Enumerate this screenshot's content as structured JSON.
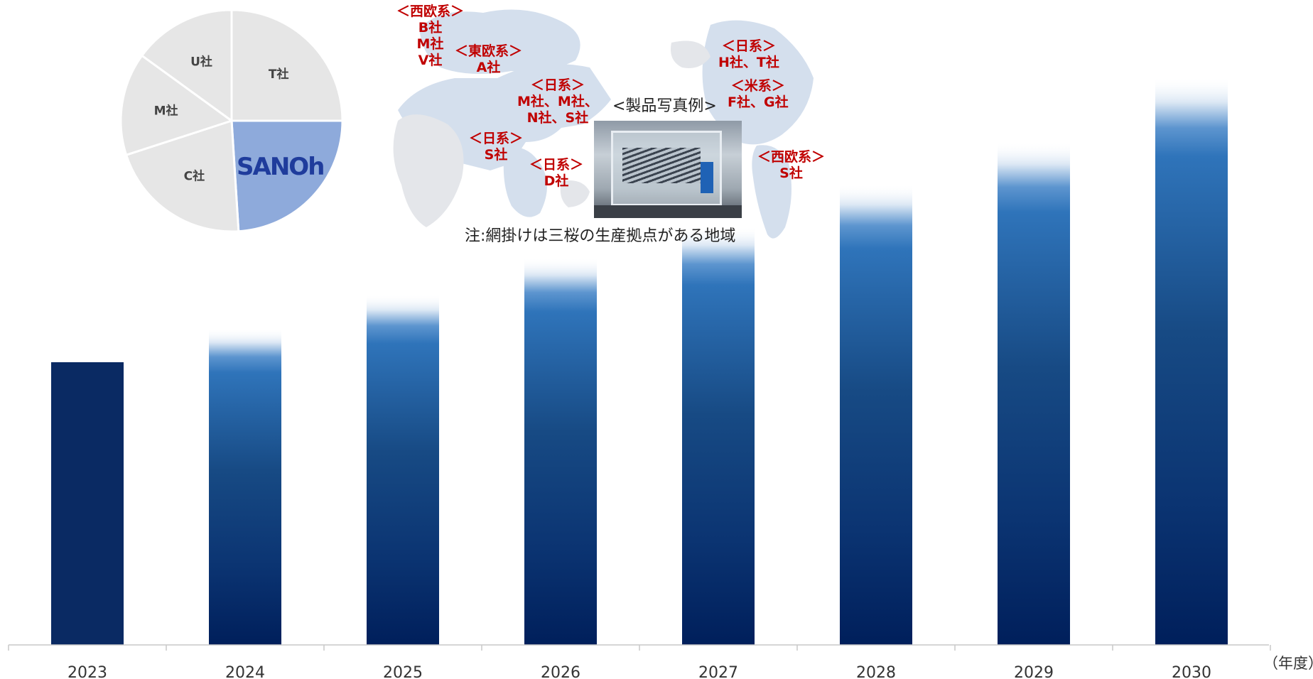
{
  "chart_data": [
    {
      "type": "bar",
      "categories": [
        "2023",
        "2024",
        "2025",
        "2026",
        "2027",
        "2028",
        "2029",
        "2030"
      ],
      "values": [
        100,
        112,
        124,
        137,
        148,
        163,
        178,
        201
      ],
      "value_note": "relative heights (no value axis printed)",
      "xlabel_unit": "（年度）",
      "colors": {
        "solid": "#0a2a63",
        "gradient_top": "#2f74ba",
        "gradient_bottom": "#001f5b"
      }
    },
    {
      "type": "pie",
      "labels": [
        "T社",
        "SANOh",
        "C社",
        "M社",
        "U社"
      ],
      "values": [
        25,
        24,
        21,
        15,
        15
      ],
      "colors": [
        "#e6e6e6",
        "#8eaadb",
        "#e6e6e6",
        "#e6e6e6",
        "#e6e6e6"
      ],
      "logo_text": "SANOh"
    }
  ],
  "map": {
    "photo_caption": "<製品写真例>",
    "note": "注:網掛けは三桜の生産拠点がある地域",
    "labels": [
      {
        "id": "west-europe",
        "lines": [
          "＜西欧系＞",
          "B社",
          "M社",
          "V社"
        ]
      },
      {
        "id": "east-europe",
        "lines": [
          "＜東欧系＞",
          "A社"
        ]
      },
      {
        "id": "japan-china",
        "lines": [
          "＜日系＞",
          "M社、M社、",
          "N社、S社"
        ]
      },
      {
        "id": "japan-india",
        "lines": [
          "＜日系＞",
          "S社"
        ]
      },
      {
        "id": "japan-sea",
        "lines": [
          "＜日系＞",
          "D社"
        ]
      },
      {
        "id": "japan-na",
        "lines": [
          "＜日系＞",
          "H社、T社"
        ]
      },
      {
        "id": "us",
        "lines": [
          "＜米系＞",
          "F社、G社"
        ]
      },
      {
        "id": "west-europe-sa",
        "lines": [
          "＜西欧系＞",
          "S社"
        ]
      }
    ]
  },
  "colors": {
    "label_red": "#c00000",
    "map_fill": "#d4dfed",
    "map_dim": "#e4e6ea"
  }
}
